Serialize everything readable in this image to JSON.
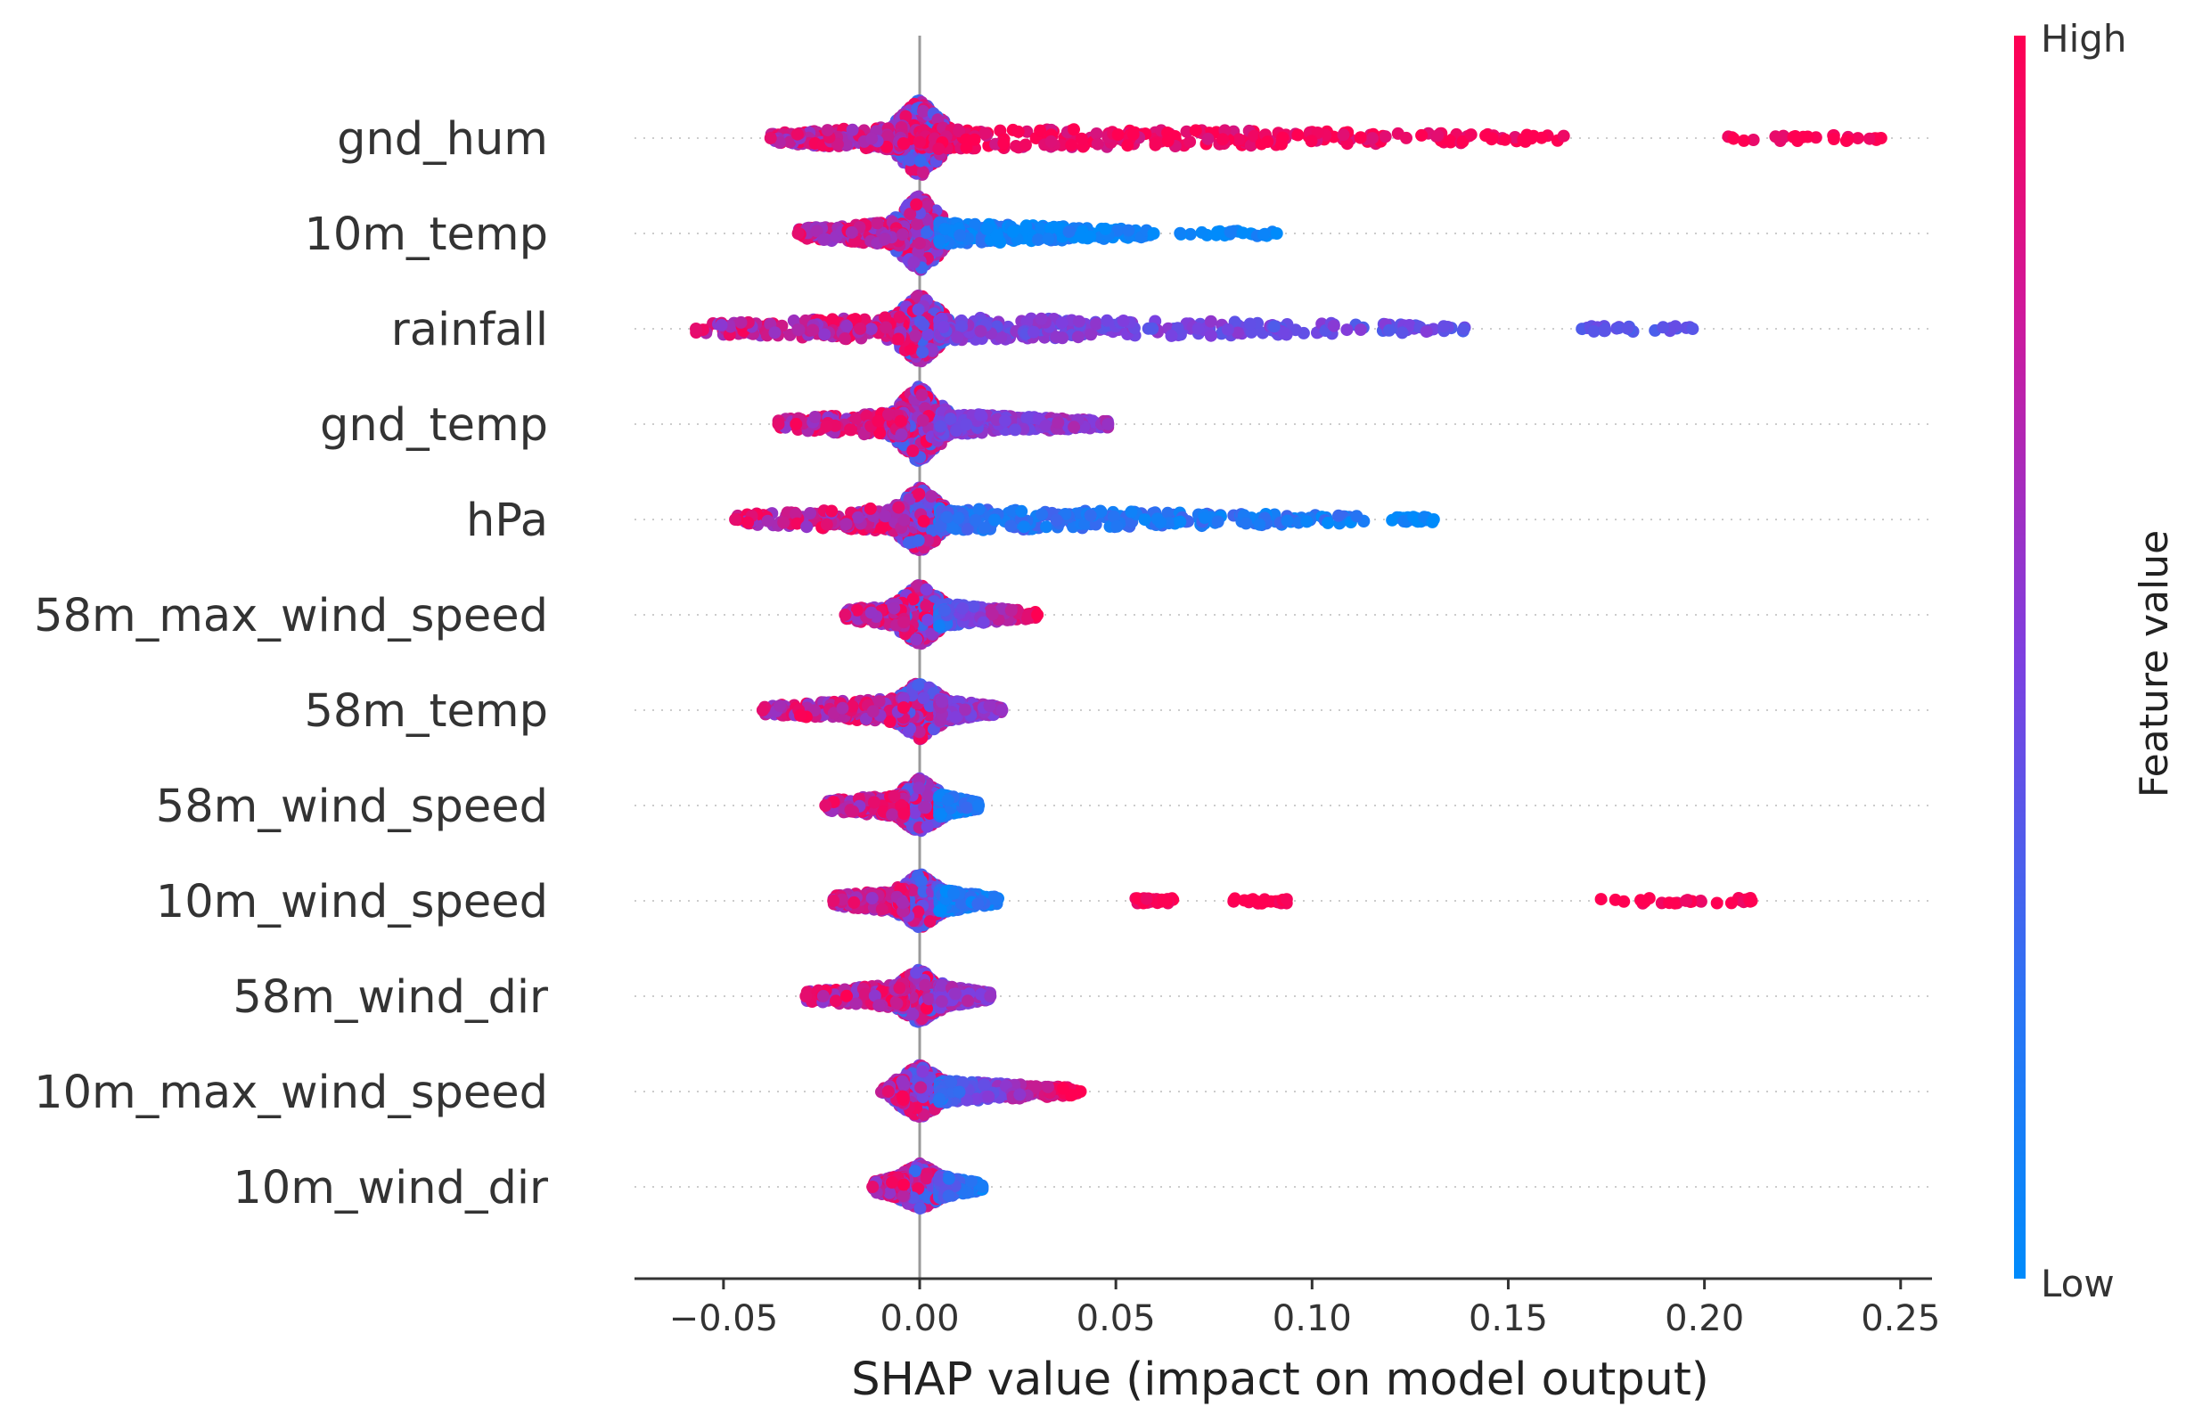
{
  "chart_data": {
    "type": "scatter",
    "subtype": "shap-beeswarm",
    "xlabel": "SHAP value (impact on model output)",
    "ylabel": "",
    "xlim": [
      -0.072,
      0.258
    ],
    "x_ticks": [
      -0.05,
      0.0,
      0.05,
      0.1,
      0.15,
      0.2,
      0.25
    ],
    "x_tick_labels": [
      "−0.05",
      "0.00",
      "0.05",
      "0.10",
      "0.15",
      "0.20",
      "0.25"
    ],
    "grid": false,
    "colorbar": {
      "title": "Feature value",
      "high_label": "High",
      "low_label": "Low",
      "high_color": "#ff0052",
      "mid_color": "#7d3fe0",
      "low_color": "#008bfb"
    },
    "features": [
      {
        "name": "gnd_hum",
        "min": -0.038,
        "max": 0.245,
        "spread": 1.0,
        "segments": [
          {
            "x0": 0.0,
            "x1": 0.165,
            "c0": 0.9,
            "c1": 1.0
          }
        ],
        "clusters": [
          {
            "x0": 0.2,
            "x1": 0.245,
            "c": 1.0
          }
        ]
      },
      {
        "name": "10m_temp",
        "min": -0.031,
        "max": 0.091,
        "spread": 1.0,
        "segments": [
          {
            "x0": 0.005,
            "x1": 0.06,
            "c0": 0.1,
            "c1": 0.0
          }
        ],
        "clusters": [
          {
            "x0": 0.065,
            "x1": 0.091,
            "c": 0.0
          }
        ]
      },
      {
        "name": "rainfall",
        "min": -0.057,
        "max": 0.197,
        "spread": 0.9,
        "segments": [
          {
            "x0": 0.005,
            "x1": 0.14,
            "c0": 0.5,
            "c1": 0.4
          }
        ],
        "clusters": [
          {
            "x0": 0.165,
            "x1": 0.197,
            "c": 0.35
          }
        ]
      },
      {
        "name": "gnd_temp",
        "min": -0.036,
        "max": 0.048,
        "spread": 1.0,
        "segments": [
          {
            "x0": 0.005,
            "x1": 0.048,
            "c0": 0.5,
            "c1": 0.6
          }
        ],
        "clusters": []
      },
      {
        "name": "hPa",
        "min": -0.047,
        "max": 0.131,
        "spread": 0.85,
        "segments": [
          {
            "x0": 0.005,
            "x1": 0.115,
            "c0": 0.2,
            "c1": 0.1
          }
        ],
        "clusters": [
          {
            "x0": 0.12,
            "x1": 0.131,
            "c": 0.0
          }
        ]
      },
      {
        "name": "58m_max_wind_speed",
        "min": -0.019,
        "max": 0.03,
        "spread": 0.8,
        "segments": [
          {
            "x0": 0.005,
            "x1": 0.03,
            "c0": 0.2,
            "c1": 1.0
          }
        ],
        "clusters": []
      },
      {
        "name": "58m_temp",
        "min": -0.04,
        "max": 0.021,
        "spread": 0.75,
        "segments": [
          {
            "x0": 0.005,
            "x1": 0.021,
            "c0": 0.55,
            "c1": 0.6
          }
        ],
        "clusters": []
      },
      {
        "name": "58m_wind_speed",
        "min": -0.024,
        "max": 0.015,
        "spread": 0.7,
        "segments": [
          {
            "x0": 0.005,
            "x1": 0.015,
            "c0": 0.1,
            "c1": 0.1
          }
        ],
        "clusters": []
      },
      {
        "name": "10m_wind_speed",
        "min": -0.022,
        "max": 0.212,
        "spread": 0.7,
        "segments": [
          {
            "x0": 0.005,
            "x1": 0.02,
            "c0": 0.1,
            "c1": 0.1
          }
        ],
        "clusters": [
          {
            "x0": 0.055,
            "x1": 0.065,
            "c": 1.0
          },
          {
            "x0": 0.08,
            "x1": 0.094,
            "c": 1.0
          },
          {
            "x0": 0.173,
            "x1": 0.212,
            "c": 1.0
          }
        ]
      },
      {
        "name": "58m_wind_dir",
        "min": -0.029,
        "max": 0.018,
        "spread": 0.7,
        "segments": [
          {
            "x0": 0.005,
            "x1": 0.018,
            "c0": 0.6,
            "c1": 0.6
          }
        ],
        "clusters": []
      },
      {
        "name": "10m_max_wind_speed",
        "min": -0.008,
        "max": 0.041,
        "spread": 0.7,
        "segments": [
          {
            "x0": 0.005,
            "x1": 0.041,
            "c0": 0.2,
            "c1": 1.0
          }
        ],
        "clusters": []
      },
      {
        "name": "10m_wind_dir",
        "min": -0.012,
        "max": 0.016,
        "spread": 0.6,
        "segments": [
          {
            "x0": 0.005,
            "x1": 0.016,
            "c0": 0.3,
            "c1": 0.1
          }
        ],
        "clusters": []
      }
    ]
  }
}
